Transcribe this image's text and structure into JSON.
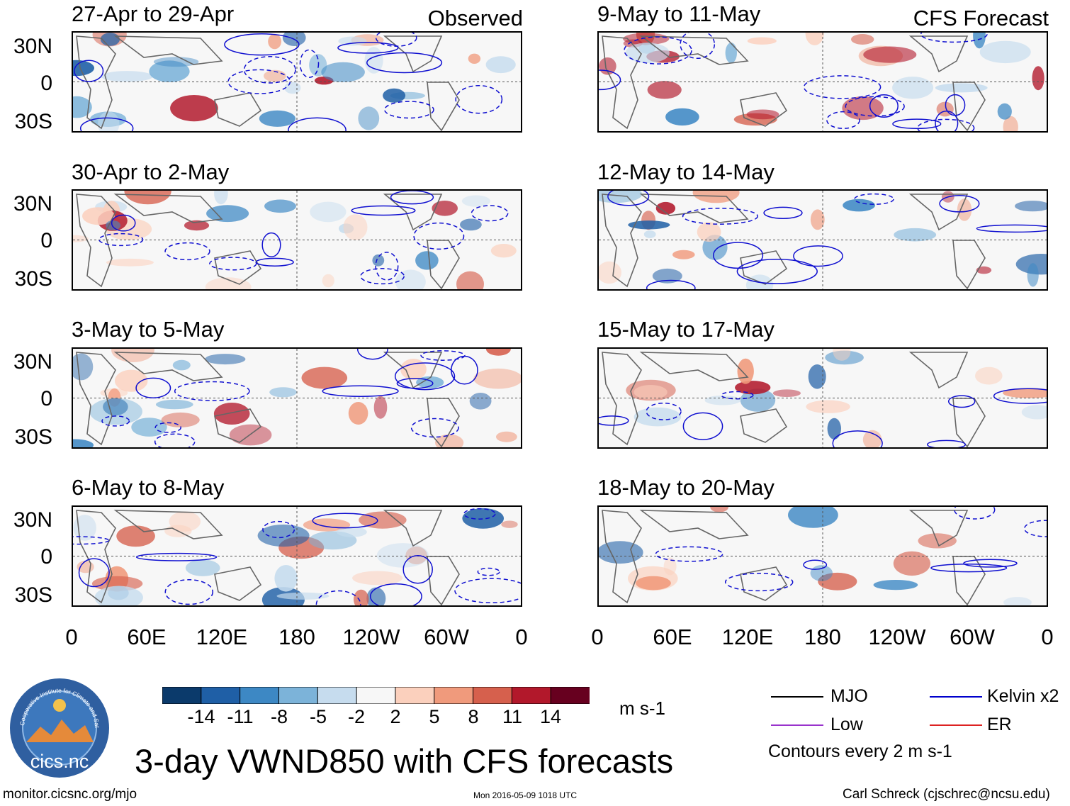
{
  "columns": {
    "left_corner": "Observed",
    "right_corner": "CFS Forecast"
  },
  "panels_left": [
    {
      "title": "27-Apr to 29-Apr"
    },
    {
      "title": "30-Apr to 2-May"
    },
    {
      "title": "3-May to 5-May"
    },
    {
      "title": "6-May to 8-May"
    }
  ],
  "panels_right": [
    {
      "title": "9-May to 11-May"
    },
    {
      "title": "12-May to 14-May"
    },
    {
      "title": "15-May to 17-May"
    },
    {
      "title": "18-May to 20-May"
    }
  ],
  "lat_labels": [
    "30N",
    "0",
    "30S"
  ],
  "lon_labels": [
    "0",
    "60E",
    "120E",
    "180",
    "120W",
    "60W",
    "0"
  ],
  "colorbar": {
    "labels": [
      "-14",
      "-11",
      "-8",
      "-5",
      "-2",
      "2",
      "5",
      "8",
      "11",
      "14"
    ],
    "colors": [
      "#0b3a6b",
      "#1f5fa6",
      "#3d88c4",
      "#7cb3d9",
      "#c6dcee",
      "#f7f7f7",
      "#fbd0bd",
      "#f09a7c",
      "#d6604d",
      "#b2182b",
      "#67001f"
    ],
    "units": "m s-1"
  },
  "main_title": "3-day VWND850 with CFS forecasts",
  "legend": {
    "items": [
      {
        "label": "MJO",
        "color": "#000000"
      },
      {
        "label": "Kelvin x2",
        "color": "#0000cc"
      },
      {
        "label": "Low",
        "color": "#9933cc"
      },
      {
        "label": "ER",
        "color": "#dd2222"
      }
    ],
    "note": "Contours every 2 m s-1"
  },
  "logo": {
    "text": "cics.nc",
    "ring_text": "Cooperative Institute for Climate and Satellites"
  },
  "footer": {
    "left": "monitor.cicsnc.org/mjo",
    "center": "Mon 2016-05-09 1018 UTC",
    "right": "Carl Schreck (cjschrec@ncsu.edu)"
  }
}
